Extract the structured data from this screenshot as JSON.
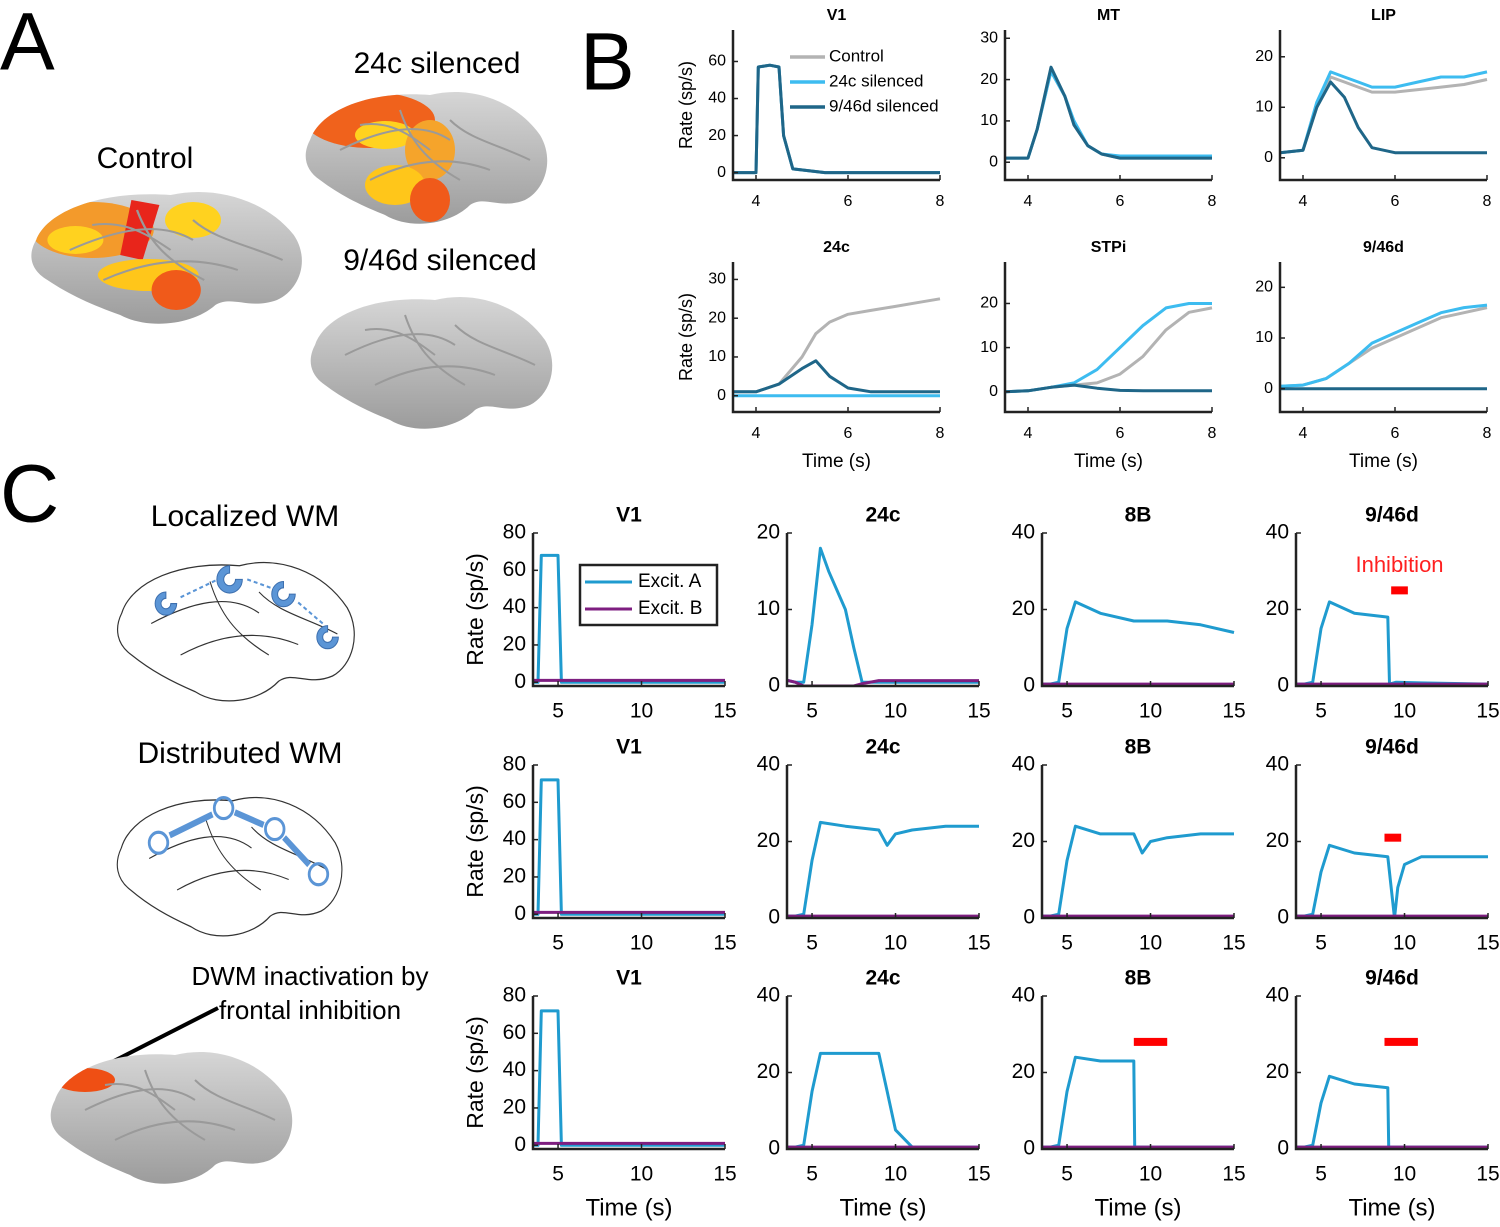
{
  "figure": {
    "panel_labels": [
      "A",
      "B",
      "C"
    ],
    "brain_labels": [
      "Control",
      "24c silenced",
      "9/46d silenced"
    ],
    "schematic_labels": [
      "Localized WM",
      "Distributed WM"
    ],
    "inactivation_label": [
      "DWM inactivation by",
      "frontal inhibition"
    ]
  },
  "chart_data": [
    {
      "type": "line",
      "title": "V1",
      "ylabel": "Rate (sp/s)",
      "xlim": [
        3.5,
        8
      ],
      "xticks": [
        4,
        6,
        8
      ],
      "ylim": [
        -4,
        77
      ],
      "yticks": [
        0,
        20,
        40,
        60
      ],
      "legend": "upper right",
      "x": [
        3.5,
        4.0,
        4.05,
        4.3,
        4.5,
        4.6,
        4.8,
        5.5,
        6,
        7,
        8
      ],
      "series": [
        {
          "name": "Control",
          "color": "#b3b3b3",
          "values": [
            0,
            0,
            57,
            58,
            57,
            20,
            2,
            0,
            0,
            0,
            0
          ]
        },
        {
          "name": "24c silenced",
          "color": "#3dbcf0",
          "values": [
            0,
            0,
            57,
            58,
            57,
            20,
            2,
            0,
            0,
            0,
            0
          ]
        },
        {
          "name": "9/46d silenced",
          "color": "#1f6688",
          "values": [
            0,
            0,
            57,
            58,
            57,
            20,
            2,
            0,
            0,
            0,
            0
          ]
        }
      ]
    },
    {
      "type": "line",
      "title": "MT",
      "xlim": [
        3.5,
        8
      ],
      "xticks": [
        4,
        6,
        8
      ],
      "ylim": [
        -4.3,
        32
      ],
      "yticks": [
        0,
        10,
        20,
        30
      ],
      "x": [
        3.5,
        4,
        4.2,
        4.5,
        4.8,
        5,
        5.3,
        5.6,
        6,
        7,
        8
      ],
      "series": [
        {
          "color": "#b3b3b3",
          "values": [
            1,
            1,
            8,
            22,
            16,
            9,
            4,
            2,
            1,
            1,
            1
          ]
        },
        {
          "color": "#3dbcf0",
          "values": [
            1,
            1,
            8,
            22,
            16,
            10,
            4,
            2,
            1.5,
            1.5,
            1.5
          ]
        },
        {
          "color": "#1f6688",
          "values": [
            1,
            1,
            8,
            23,
            16,
            9,
            4,
            2,
            1,
            1,
            1
          ]
        }
      ]
    },
    {
      "type": "line",
      "title": "LIP",
      "xlim": [
        3.5,
        8
      ],
      "xticks": [
        4,
        6,
        8
      ],
      "ylim": [
        -4.4,
        25.3
      ],
      "yticks": [
        0,
        10,
        20
      ],
      "x": [
        3.5,
        4,
        4.3,
        4.6,
        4.9,
        5.2,
        5.5,
        6,
        6.5,
        7,
        7.5,
        8
      ],
      "series": [
        {
          "color": "#b3b3b3",
          "values": [
            1,
            1.5,
            10,
            16,
            15,
            14,
            13,
            13,
            13.5,
            14,
            14.5,
            15.5
          ]
        },
        {
          "color": "#3dbcf0",
          "values": [
            1,
            1.5,
            11,
            17,
            16,
            15,
            14,
            14,
            15,
            16,
            16,
            17
          ]
        },
        {
          "color": "#1f6688",
          "values": [
            1,
            1.5,
            10,
            15,
            12,
            6,
            2,
            1,
            1,
            1,
            1,
            1
          ]
        }
      ]
    },
    {
      "type": "line",
      "title": "24c",
      "ylabel": "Rate (sp/s)",
      "xlabel": "Time (s)",
      "xlim": [
        3.5,
        8
      ],
      "xticks": [
        4,
        6,
        8
      ],
      "ylim": [
        -4.2,
        34.5
      ],
      "yticks": [
        0,
        10,
        20,
        30
      ],
      "x": [
        3.5,
        4,
        4.5,
        5,
        5.3,
        5.6,
        6,
        6.5,
        7,
        7.5,
        8
      ],
      "series": [
        {
          "color": "#b3b3b3",
          "values": [
            1,
            1,
            3,
            10,
            16,
            19,
            21,
            22,
            23,
            24,
            25
          ]
        },
        {
          "color": "#3dbcf0",
          "values": [
            0,
            0,
            0,
            0,
            0,
            0,
            0,
            0,
            0,
            0,
            0
          ]
        },
        {
          "color": "#1f6688",
          "values": [
            1,
            1,
            3,
            7,
            9,
            5,
            2,
            1,
            1,
            1,
            1
          ]
        }
      ]
    },
    {
      "type": "line",
      "title": "STPi",
      "xlabel": "Time (s)",
      "xlim": [
        3.5,
        8
      ],
      "xticks": [
        4,
        6,
        8
      ],
      "ylim": [
        -4.6,
        29.4
      ],
      "yticks": [
        0,
        10,
        20
      ],
      "x": [
        3.5,
        4,
        4.5,
        5,
        5.5,
        6,
        6.5,
        7,
        7.5,
        8
      ],
      "series": [
        {
          "color": "#b3b3b3",
          "values": [
            0,
            0.2,
            1,
            1.5,
            2,
            4,
            8,
            14,
            18,
            19
          ]
        },
        {
          "color": "#3dbcf0",
          "values": [
            0,
            0.2,
            1,
            2,
            5,
            10,
            15,
            19,
            20,
            20
          ]
        },
        {
          "color": "#1f6688",
          "values": [
            0,
            0.2,
            1,
            1.5,
            0.8,
            0.3,
            0.2,
            0.2,
            0.2,
            0.2
          ]
        }
      ]
    },
    {
      "type": "line",
      "title": "9/46d",
      "xlabel": "Time (s)",
      "xlim": [
        3.5,
        8
      ],
      "xticks": [
        4,
        6,
        8
      ],
      "ylim": [
        -4.6,
        25
      ],
      "yticks": [
        0,
        10,
        20
      ],
      "x": [
        3.5,
        4,
        4.5,
        5,
        5.5,
        6,
        6.5,
        7,
        7.5,
        8
      ],
      "series": [
        {
          "color": "#b3b3b3",
          "values": [
            0.5,
            0.7,
            2,
            5,
            8,
            10,
            12,
            14,
            15,
            16
          ]
        },
        {
          "color": "#3dbcf0",
          "values": [
            0.5,
            0.7,
            2,
            5,
            9,
            11,
            13,
            15,
            16,
            16.5
          ]
        },
        {
          "color": "#1f6688",
          "values": [
            0,
            0,
            0,
            0,
            0,
            0,
            0,
            0,
            0,
            0
          ]
        }
      ]
    },
    {
      "type": "line",
      "title": "V1",
      "ylabel": "Rate (sp/s)",
      "xlim": [
        3.5,
        15
      ],
      "xticks": [
        5,
        10,
        15
      ],
      "ylim": [
        -2,
        80
      ],
      "yticks": [
        0,
        20,
        40,
        60,
        80
      ],
      "legend": "upper right",
      "x": [
        3,
        3.8,
        4,
        5,
        5.2,
        6,
        15
      ],
      "series": [
        {
          "name": "Excit. A",
          "color": "#1f9bcf",
          "values": [
            0,
            0,
            68,
            68,
            0,
            0,
            0
          ]
        },
        {
          "name": "Excit. B",
          "color": "#7e1e80",
          "values": [
            1,
            1,
            1,
            1,
            1,
            1,
            1
          ]
        }
      ]
    },
    {
      "type": "line",
      "title": "24c",
      "xlim": [
        3.5,
        15
      ],
      "xticks": [
        5,
        10,
        15
      ],
      "ylim": [
        0,
        20
      ],
      "yticks": [
        0,
        10,
        20
      ],
      "x": [
        3,
        4,
        4.5,
        5,
        5.5,
        6,
        7,
        7.5,
        8,
        9,
        15
      ],
      "series": [
        {
          "color": "#1f9bcf",
          "values": [
            1,
            0.5,
            0.5,
            8,
            18,
            15,
            10,
            5,
            0.5,
            0.5,
            0.5
          ]
        },
        {
          "color": "#7e1e80",
          "values": [
            1,
            0.5,
            0,
            0,
            0,
            0,
            0,
            0,
            0.3,
            0.7,
            0.7
          ]
        }
      ]
    },
    {
      "type": "line",
      "title": "8B",
      "xlim": [
        3.5,
        15
      ],
      "xticks": [
        5,
        10,
        15
      ],
      "ylim": [
        0,
        40
      ],
      "yticks": [
        0,
        20,
        40
      ],
      "x": [
        3,
        4,
        4.5,
        5,
        5.5,
        7,
        9,
        11,
        13,
        15
      ],
      "series": [
        {
          "color": "#1f9bcf",
          "values": [
            0.5,
            0.5,
            1,
            15,
            22,
            19,
            17,
            17,
            16,
            14
          ]
        },
        {
          "color": "#7e1e80",
          "values": [
            0.5,
            0.5,
            0.5,
            0.5,
            0.5,
            0.5,
            0.5,
            0.5,
            0.5,
            0.5
          ]
        }
      ]
    },
    {
      "type": "line",
      "title": "9/46d",
      "annotation": "Inhibition",
      "inhibition": {
        "x": [
          9.2,
          10.2
        ],
        "y": 25
      },
      "xlim": [
        3.5,
        15
      ],
      "xticks": [
        5,
        10,
        15
      ],
      "ylim": [
        0,
        40
      ],
      "yticks": [
        0,
        20,
        40
      ],
      "x": [
        3,
        4,
        4.5,
        5,
        5.5,
        7,
        9,
        9.1,
        9.5,
        11,
        15
      ],
      "series": [
        {
          "color": "#1f9bcf",
          "values": [
            0.5,
            0.5,
            1,
            15,
            22,
            19,
            18,
            0.5,
            1,
            0.8,
            0.5
          ]
        },
        {
          "color": "#7e1e80",
          "values": [
            0.5,
            0.5,
            0.5,
            0.5,
            0.5,
            0.5,
            0.5,
            0.5,
            0.5,
            0.5,
            0.5
          ]
        }
      ]
    },
    {
      "type": "line",
      "title": "V1",
      "ylabel": "Rate (sp/s)",
      "xlim": [
        3.5,
        15
      ],
      "xticks": [
        5,
        10,
        15
      ],
      "ylim": [
        -2,
        80
      ],
      "yticks": [
        0,
        20,
        40,
        60,
        80
      ],
      "x": [
        3,
        3.8,
        4,
        5,
        5.2,
        6,
        15
      ],
      "series": [
        {
          "color": "#1f9bcf",
          "values": [
            0,
            0,
            72,
            72,
            0,
            0,
            0
          ]
        },
        {
          "color": "#7e1e80",
          "values": [
            1,
            1,
            1,
            1,
            1,
            1,
            1
          ]
        }
      ]
    },
    {
      "type": "line",
      "title": "24c",
      "xlim": [
        3.5,
        15
      ],
      "xticks": [
        5,
        10,
        15
      ],
      "ylim": [
        0,
        40
      ],
      "yticks": [
        0,
        20,
        40
      ],
      "x": [
        3,
        4,
        4.5,
        5,
        5.5,
        7,
        9,
        9.5,
        10,
        11,
        13,
        15
      ],
      "series": [
        {
          "color": "#1f9bcf",
          "values": [
            0.5,
            0.5,
            1,
            15,
            25,
            24,
            23,
            19,
            22,
            23,
            24,
            24
          ]
        },
        {
          "color": "#7e1e80",
          "values": [
            0.5,
            0.5,
            0.5,
            0.5,
            0.5,
            0.5,
            0.5,
            0.5,
            0.5,
            0.5,
            0.5,
            0.5
          ]
        }
      ]
    },
    {
      "type": "line",
      "title": "8B",
      "xlim": [
        3.5,
        15
      ],
      "xticks": [
        5,
        10,
        15
      ],
      "ylim": [
        0,
        40
      ],
      "yticks": [
        0,
        20,
        40
      ],
      "x": [
        3,
        4,
        4.5,
        5,
        5.5,
        7,
        9,
        9.5,
        10,
        11,
        13,
        15
      ],
      "series": [
        {
          "color": "#1f9bcf",
          "values": [
            0.5,
            0.5,
            1,
            15,
            24,
            22,
            22,
            17,
            20,
            21,
            22,
            22
          ]
        },
        {
          "color": "#7e1e80",
          "values": [
            0.5,
            0.5,
            0.5,
            0.5,
            0.5,
            0.5,
            0.5,
            0.5,
            0.5,
            0.5,
            0.5,
            0.5
          ]
        }
      ]
    },
    {
      "type": "line",
      "title": "9/46d",
      "inhibition": {
        "x": [
          8.8,
          9.8
        ],
        "y": 21
      },
      "xlim": [
        3.5,
        15
      ],
      "xticks": [
        5,
        10,
        15
      ],
      "ylim": [
        0,
        40
      ],
      "yticks": [
        0,
        20,
        40
      ],
      "x": [
        3,
        4,
        4.5,
        5,
        5.5,
        7,
        9,
        9.4,
        9.6,
        10,
        11,
        15
      ],
      "series": [
        {
          "color": "#1f9bcf",
          "values": [
            0.5,
            0.5,
            1,
            12,
            19,
            17,
            16,
            0,
            8,
            14,
            16,
            16
          ]
        },
        {
          "color": "#7e1e80",
          "values": [
            0.5,
            0.5,
            0.5,
            0.5,
            0.5,
            0.5,
            0.5,
            0.5,
            0.5,
            0.5,
            0.5,
            0.5
          ]
        }
      ]
    },
    {
      "type": "line",
      "title": "V1",
      "ylabel": "Rate (sp/s)",
      "xlabel": "Time (s)",
      "xlim": [
        3.5,
        15
      ],
      "xticks": [
        5,
        10,
        15
      ],
      "ylim": [
        -2,
        80
      ],
      "yticks": [
        0,
        20,
        40,
        60,
        80
      ],
      "x": [
        3,
        3.8,
        4,
        5,
        5.2,
        6,
        15
      ],
      "series": [
        {
          "color": "#1f9bcf",
          "values": [
            0,
            0,
            72,
            72,
            0,
            0,
            0
          ]
        },
        {
          "color": "#7e1e80",
          "values": [
            1,
            1,
            1,
            1,
            1,
            1,
            1
          ]
        }
      ]
    },
    {
      "type": "line",
      "title": "24c",
      "xlabel": "Time (s)",
      "xlim": [
        3.5,
        15
      ],
      "xticks": [
        5,
        10,
        15
      ],
      "ylim": [
        0,
        40
      ],
      "yticks": [
        0,
        20,
        40
      ],
      "x": [
        3,
        4,
        4.5,
        5,
        5.5,
        7,
        9,
        9.5,
        10,
        11,
        15
      ],
      "series": [
        {
          "color": "#1f9bcf",
          "values": [
            0.5,
            0.5,
            1,
            15,
            25,
            25,
            25,
            15,
            5,
            0.5,
            0.5
          ]
        },
        {
          "color": "#7e1e80",
          "values": [
            0.5,
            0.5,
            0.5,
            0.5,
            0.5,
            0.5,
            0.5,
            0.5,
            0.5,
            0.5,
            0.5
          ]
        }
      ]
    },
    {
      "type": "line",
      "title": "8B",
      "xlabel": "Time (s)",
      "inhibition": {
        "x": [
          9,
          11
        ],
        "y": 28
      },
      "xlim": [
        3.5,
        15
      ],
      "xticks": [
        5,
        10,
        15
      ],
      "ylim": [
        0,
        40
      ],
      "yticks": [
        0,
        20,
        40
      ],
      "x": [
        3,
        4,
        4.5,
        5,
        5.5,
        7,
        9,
        9.05,
        10,
        15
      ],
      "series": [
        {
          "color": "#1f9bcf",
          "values": [
            0.5,
            0.5,
            1,
            15,
            24,
            23,
            23,
            0.5,
            0.5,
            0.5
          ]
        },
        {
          "color": "#7e1e80",
          "values": [
            0.5,
            0.5,
            0.5,
            0.5,
            0.5,
            0.5,
            0.5,
            0.5,
            0.5,
            0.5
          ]
        }
      ]
    },
    {
      "type": "line",
      "title": "9/46d",
      "xlabel": "Time (s)",
      "inhibition": {
        "x": [
          8.8,
          10.8
        ],
        "y": 28
      },
      "xlim": [
        3.5,
        15
      ],
      "xticks": [
        5,
        10,
        15
      ],
      "ylim": [
        0,
        40
      ],
      "yticks": [
        0,
        20,
        40
      ],
      "x": [
        3,
        4,
        4.5,
        5,
        5.5,
        7,
        9,
        9.05,
        10,
        15
      ],
      "series": [
        {
          "color": "#1f9bcf",
          "values": [
            0.5,
            0.5,
            1,
            12,
            19,
            17,
            16,
            0.5,
            0.5,
            0.5
          ]
        },
        {
          "color": "#7e1e80",
          "values": [
            0.5,
            0.5,
            0.5,
            0.5,
            0.5,
            0.5,
            0.5,
            0.5,
            0.5,
            0.5
          ]
        }
      ]
    }
  ]
}
